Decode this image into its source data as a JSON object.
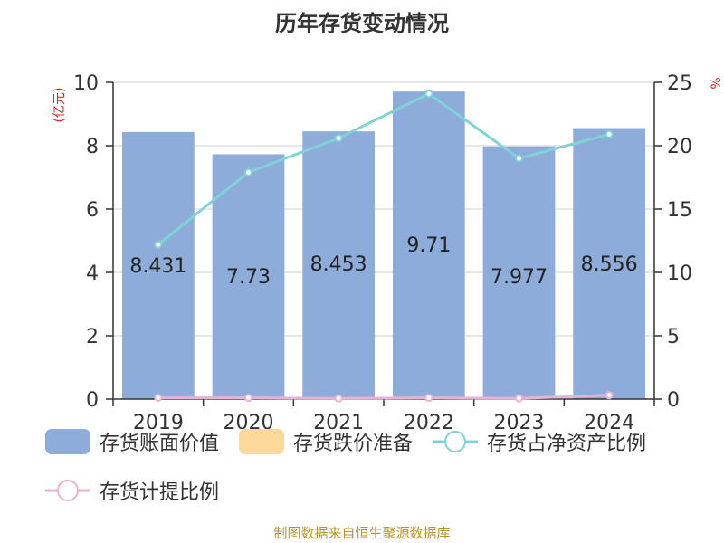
{
  "chart_data": {
    "type": "bar",
    "title": "历年存货变动情况",
    "categories": [
      "2019",
      "2020",
      "2021",
      "2022",
      "2023",
      "2024"
    ],
    "y_left": {
      "label": "(亿元)",
      "range": [
        0,
        10
      ],
      "ticks": [
        "0",
        "2",
        "4",
        "6",
        "8",
        "10"
      ]
    },
    "y_right": {
      "label": "%",
      "range": [
        0,
        25
      ],
      "ticks": [
        "0",
        "5",
        "10",
        "15",
        "20",
        "25"
      ]
    },
    "grid": true,
    "series": [
      {
        "name": "存货账面价值",
        "type": "bar",
        "axis": "left",
        "color": "#8eacd9",
        "values": [
          8.431,
          7.73,
          8.453,
          9.71,
          7.977,
          8.556
        ],
        "labels": [
          "8.431",
          "7.73",
          "8.453",
          "9.71",
          "7.977",
          "8.556"
        ]
      },
      {
        "name": "存货跌价准备",
        "type": "bar",
        "axis": "left",
        "color": "#fcd89b",
        "values": [
          0,
          0,
          0,
          0,
          0,
          0
        ]
      },
      {
        "name": "存货占净资产比例",
        "type": "line",
        "axis": "right",
        "color": "#7fd3d4",
        "values": [
          12.2,
          17.9,
          20.6,
          24.1,
          19.0,
          20.9
        ]
      },
      {
        "name": "存货计提比例",
        "type": "line",
        "axis": "right",
        "color": "#e8b2d6",
        "values": [
          0.1,
          0.1,
          0.05,
          0.1,
          0.05,
          0.3
        ]
      }
    ],
    "legend_position": "bottom"
  },
  "source": "制图数据来自恒生聚源数据库"
}
